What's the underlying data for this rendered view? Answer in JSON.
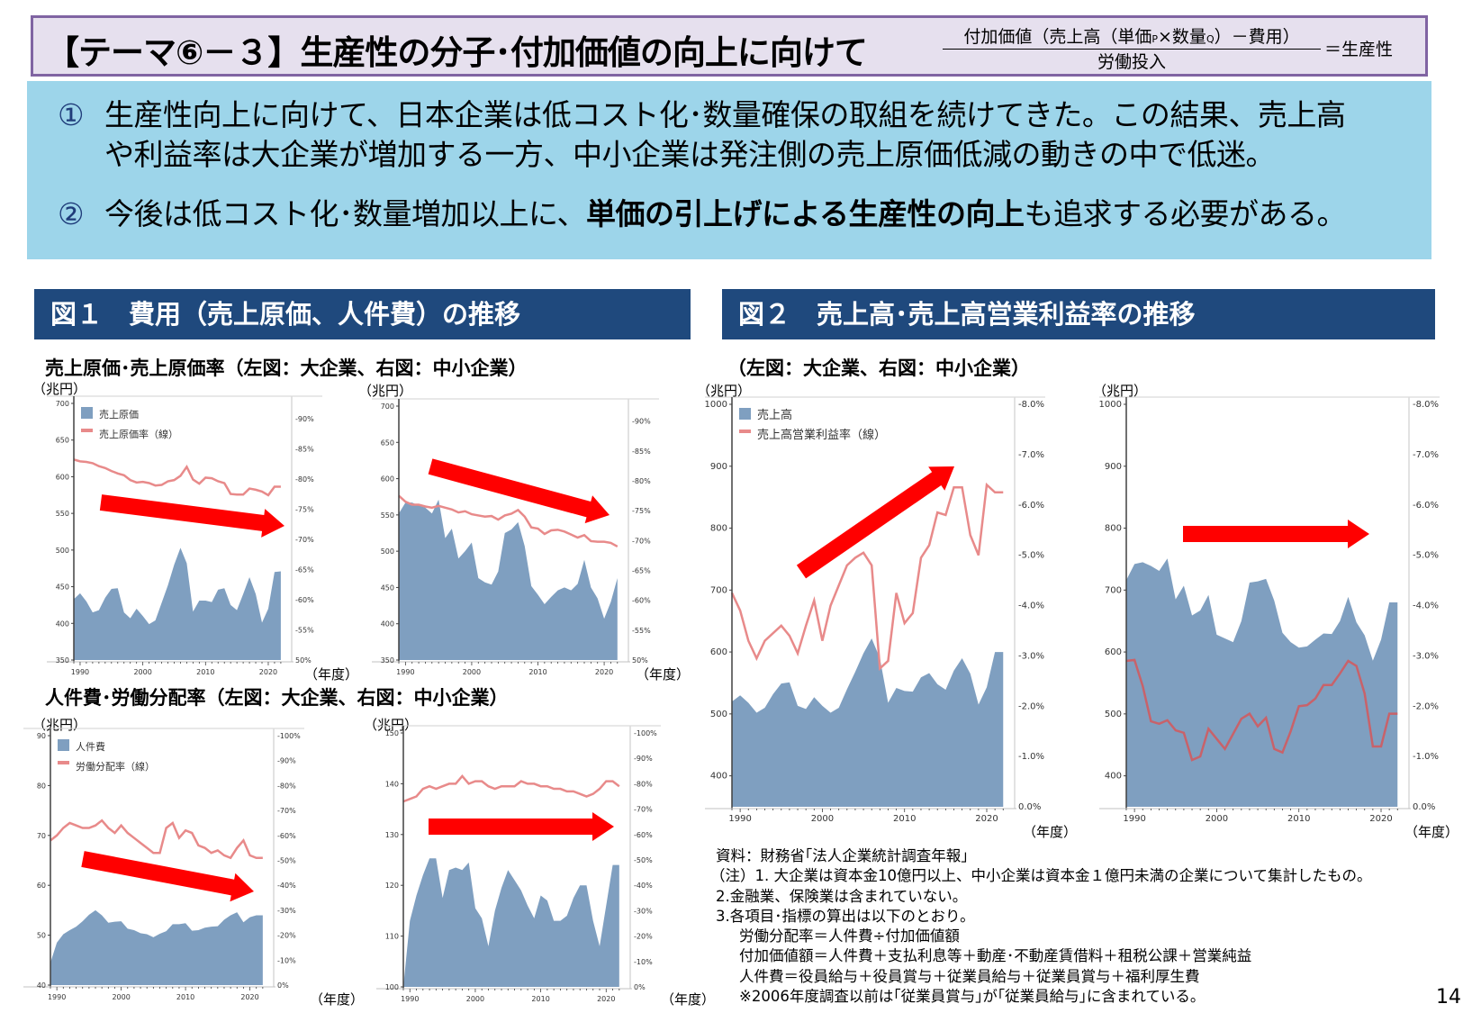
{
  "header": {
    "title": "【テーマ⑥－３】生産性の分子･付加価値の向上に向けて",
    "formula_numerator_a": "付加価値（売上高（単価",
    "formula_p": "P",
    "formula_x": "×数量",
    "formula_q": "Q",
    "formula_numerator_b": "）－費用）",
    "formula_denominator": "労働投入",
    "formula_result": "＝生産性"
  },
  "summary": {
    "point1_mark": "①",
    "point1_line1": "生産性向上に向けて、日本企業は低コスト化･数量確保の取組を続けてきた。この結果、売上高",
    "point1_line2": "や利益率は大企業が増加する一方、中小企業は発注側の売上原価低減の動きの中で低迷。",
    "point2_mark": "②",
    "point2_pre": "今後は低コスト化･数量増加以上に、",
    "point2_bold": "単価の引上げによる生産性の向上",
    "point2_post": "も追求する必要がある。"
  },
  "figures": {
    "fig1_title": "図１　費用（売上原価、人件費）の推移",
    "fig1_sub1": "売上原価･売上原価率（左図：大企業、右図：中小企業）",
    "fig1_sub2": "人件費･労働分配率（左図：大企業、右図：中小企業）",
    "fig2_title": "図２　売上高･売上高営業利益率の推移",
    "fig2_sub": "（左図：大企業、右図：中小企業）",
    "unit_label": "（兆円）",
    "year_label": "（年度）"
  },
  "colors": {
    "area": "#7f9fc0",
    "line": "#e88a8a",
    "line_dark": "#c8626a",
    "arrow": "#ff0000",
    "header_bg": "#1f497d",
    "summary_bg": "#9dd5ea",
    "title_bg": "#e6e0ee",
    "title_border": "#8064a2"
  },
  "chart_data": [
    {
      "id": "cost_of_sales_large",
      "type": "area+line",
      "title": "売上原価･売上原価率（大企業）",
      "legend": [
        "売上原価",
        "売上原価率（線）"
      ],
      "x": [
        1989,
        1990,
        1991,
        1992,
        1993,
        1994,
        1995,
        1996,
        1997,
        1998,
        1999,
        2000,
        2001,
        2002,
        2003,
        2004,
        2005,
        2006,
        2007,
        2008,
        2009,
        2010,
        2011,
        2012,
        2013,
        2014,
        2015,
        2016,
        2017,
        2018,
        2019,
        2020,
        2021,
        2022
      ],
      "area_values": [
        433,
        441,
        430,
        415,
        418,
        435,
        447,
        448,
        415,
        407,
        420,
        410,
        399,
        404,
        428,
        452,
        480,
        503,
        482,
        416,
        431,
        431,
        429,
        446,
        448,
        425,
        418,
        440,
        463,
        440,
        401,
        420,
        470,
        471
      ],
      "line_values": [
        83.2,
        82.9,
        82.8,
        82.6,
        82.1,
        81.8,
        81.3,
        80.9,
        80.6,
        79.8,
        79.4,
        79.5,
        79.3,
        78.9,
        79.0,
        79.6,
        79.8,
        80.5,
        82.0,
        79.9,
        79.2,
        80.2,
        80.1,
        79.6,
        79.3,
        77.5,
        77.4,
        77.4,
        78.4,
        78.2,
        77.9,
        77.3,
        78.7,
        78.7
      ],
      "ylim": [
        350,
        700
      ],
      "y_ticks": [
        350,
        400,
        450,
        500,
        550,
        600,
        650,
        700
      ],
      "y2lim": [
        50,
        92.5
      ],
      "y2_ticks": [
        "50%",
        "55%",
        "60%",
        "65%",
        "70%",
        "75%",
        "80%",
        "85%",
        "90%"
      ],
      "x_ticks": [
        1990,
        2000,
        2010,
        2020
      ],
      "ylabel": "（兆円）",
      "xlabel": "（年度）",
      "trend_arrow": "down"
    },
    {
      "id": "cost_of_sales_sme",
      "type": "area+line",
      "title": "売上原価･売上原価率（中小企業）",
      "x": [
        1989,
        1990,
        1991,
        1992,
        1993,
        1994,
        1995,
        1996,
        1997,
        1998,
        1999,
        2000,
        2001,
        2002,
        2003,
        2004,
        2005,
        2006,
        2007,
        2008,
        2009,
        2010,
        2011,
        2012,
        2013,
        2014,
        2015,
        2016,
        2017,
        2018,
        2019,
        2020,
        2021,
        2022
      ],
      "area_values": [
        552,
        567,
        567,
        563,
        560,
        552,
        571,
        518,
        531,
        490,
        500,
        512,
        463,
        457,
        454,
        472,
        525,
        530,
        540,
        507,
        452,
        440,
        427,
        437,
        446,
        450,
        446,
        455,
        488,
        450,
        435,
        407,
        430,
        463
      ],
      "line_values": [
        77.5,
        76.5,
        76.0,
        76.0,
        75.7,
        75.5,
        75.8,
        75.5,
        75.2,
        74.7,
        74.9,
        74.4,
        74.2,
        74.0,
        74.1,
        73.5,
        74.2,
        74.5,
        75.1,
        74.0,
        72.2,
        72.0,
        71.1,
        71.7,
        71.8,
        71.5,
        71.0,
        70.5,
        70.9,
        69.9,
        69.8,
        69.8,
        69.6,
        69.0
      ],
      "ylim": [
        350,
        700
      ],
      "y_ticks": [
        350,
        400,
        450,
        500,
        550,
        600,
        650,
        700
      ],
      "y2lim": [
        50,
        92.5
      ],
      "y2_ticks": [
        "50%",
        "55%",
        "60%",
        "65%",
        "70%",
        "75%",
        "80%",
        "85%",
        "90%"
      ],
      "x_ticks": [
        1990,
        2000,
        2010,
        2020
      ],
      "ylabel": "（兆円）",
      "xlabel": "（年度）",
      "trend_arrow": "down"
    },
    {
      "id": "labor_cost_large",
      "type": "area+line",
      "title": "人件費･労働分配率（大企業）",
      "legend": [
        "人件費",
        "労働分配率（線）"
      ],
      "x": [
        1989,
        1990,
        1991,
        1992,
        1993,
        1994,
        1995,
        1996,
        1997,
        1998,
        1999,
        2000,
        2001,
        2002,
        2003,
        2004,
        2005,
        2006,
        2007,
        2008,
        2009,
        2010,
        2011,
        2012,
        2013,
        2014,
        2015,
        2016,
        2017,
        2018,
        2019,
        2020,
        2021,
        2022
      ],
      "area_values": [
        44.5,
        48.5,
        50.2,
        51.0,
        51.7,
        52.8,
        54.1,
        55.0,
        54.0,
        52.5,
        52.7,
        52.8,
        51.3,
        51.0,
        50.4,
        50.2,
        49.6,
        50.3,
        50.8,
        52.2,
        52.2,
        52.4,
        50.9,
        51.0,
        51.5,
        51.7,
        51.8,
        53.1,
        54.0,
        54.6,
        52.6,
        53.6,
        54.0,
        54.0
      ],
      "line_values": [
        58,
        60,
        63,
        65,
        64,
        63,
        63,
        64,
        66,
        63,
        61,
        64,
        61,
        59,
        57,
        55,
        53,
        53,
        63,
        65,
        59,
        62,
        61,
        56,
        55,
        53,
        54,
        52,
        51,
        55,
        58,
        52,
        51,
        51
      ],
      "ylim": [
        40,
        90
      ],
      "y_ticks": [
        40,
        50,
        60,
        70,
        80,
        90
      ],
      "y2lim": [
        0,
        100
      ],
      "y2_ticks": [
        "0%",
        "10%",
        "20%",
        "30%",
        "40%",
        "50%",
        "60%",
        "70%",
        "80%",
        "90%",
        "100%"
      ],
      "x_ticks": [
        1990,
        2000,
        2010,
        2020
      ],
      "ylabel": "（兆円）",
      "xlabel": "（年度）",
      "trend_arrow": "down"
    },
    {
      "id": "labor_cost_sme",
      "type": "area+line",
      "title": "人件費･労働分配率（中小企業）",
      "x": [
        1989,
        1990,
        1991,
        1992,
        1993,
        1994,
        1995,
        1996,
        1997,
        1998,
        1999,
        2000,
        2001,
        2002,
        2003,
        2004,
        2005,
        2006,
        2007,
        2008,
        2009,
        2010,
        2011,
        2012,
        2013,
        2014,
        2015,
        2016,
        2017,
        2018,
        2019,
        2020,
        2021,
        2022
      ],
      "area_values": [
        100,
        113,
        118,
        122,
        125.3,
        125.3,
        117.5,
        123,
        123.5,
        123,
        124.5,
        115.5,
        113.5,
        108,
        115,
        119.5,
        123,
        121,
        119,
        116,
        113.5,
        118,
        117,
        113,
        113,
        114,
        117.5,
        120,
        120,
        113,
        108,
        116,
        124,
        124
      ],
      "line_values": [
        73,
        74,
        75,
        78,
        79,
        78,
        79,
        80,
        80,
        83,
        80,
        81,
        81,
        79,
        78,
        79,
        79,
        79,
        81,
        80,
        80,
        79,
        79,
        78,
        78,
        77,
        77,
        76,
        75,
        76,
        78,
        81,
        81,
        79
      ],
      "ylim": [
        100,
        150
      ],
      "y_ticks": [
        100,
        110,
        120,
        130,
        140,
        150
      ],
      "y2lim": [
        0,
        100
      ],
      "y2_ticks": [
        "0%",
        "10%",
        "20%",
        "30%",
        "40%",
        "50%",
        "60%",
        "70%",
        "80%",
        "90%",
        "100%"
      ],
      "x_ticks": [
        1990,
        2000,
        2010,
        2020
      ],
      "ylabel": "（兆円）",
      "xlabel": "（年度）",
      "trend_arrow": "flat"
    },
    {
      "id": "sales_large",
      "type": "area+line",
      "title": "売上高･売上高営業利益率（大企業）",
      "legend": [
        "売上高",
        "売上高営業利益率（線）"
      ],
      "x": [
        1989,
        1990,
        1991,
        1992,
        1993,
        1994,
        1995,
        1996,
        1997,
        1998,
        1999,
        2000,
        2001,
        2002,
        2003,
        2004,
        2005,
        2006,
        2007,
        2008,
        2009,
        2010,
        2011,
        2012,
        2013,
        2014,
        2015,
        2016,
        2017,
        2018,
        2019,
        2020,
        2021,
        2022
      ],
      "area_values": [
        520,
        530,
        518,
        502,
        510,
        532,
        549,
        551,
        513,
        508,
        527,
        513,
        502,
        510,
        540,
        568,
        598,
        622,
        590,
        518,
        542,
        537,
        536,
        559,
        566,
        548,
        539,
        570,
        590,
        565,
        515,
        543,
        600,
        600
      ],
      "line_values": [
        4.25,
        3.9,
        3.3,
        2.95,
        3.3,
        3.45,
        3.6,
        3.4,
        3.05,
        3.6,
        4.1,
        3.3,
        4.0,
        4.4,
        4.8,
        4.95,
        5.05,
        4.8,
        2.75,
        2.9,
        4.25,
        3.65,
        3.85,
        4.95,
        5.2,
        5.85,
        5.8,
        6.35,
        6.35,
        5.4,
        5.0,
        6.4,
        6.25,
        6.25
      ],
      "ylim": [
        350,
        1000
      ],
      "y_ticks": [
        400,
        500,
        600,
        700,
        800,
        900,
        1000
      ],
      "y2lim": [
        0,
        8
      ],
      "y2_ticks": [
        "0.0%",
        "1.0%",
        "2.0%",
        "3.0%",
        "4.0%",
        "5.0%",
        "6.0%",
        "7.0%",
        "8.0%"
      ],
      "x_ticks": [
        1990,
        2000,
        2010,
        2020
      ],
      "ylabel": "（兆円）",
      "xlabel": "（年度）",
      "trend_arrow": "up"
    },
    {
      "id": "sales_sme",
      "type": "area+line",
      "title": "売上高･売上高営業利益率（中小企業）",
      "x": [
        1989,
        1990,
        1991,
        1992,
        1993,
        1994,
        1995,
        1996,
        1997,
        1998,
        1999,
        2000,
        2001,
        2002,
        2003,
        2004,
        2005,
        2006,
        2007,
        2008,
        2009,
        2010,
        2011,
        2012,
        2013,
        2014,
        2015,
        2016,
        2017,
        2018,
        2019,
        2020,
        2021,
        2022
      ],
      "area_values": [
        716,
        742,
        745,
        739,
        731,
        751,
        685,
        707,
        659,
        667,
        692,
        628,
        622,
        616,
        650,
        712,
        714,
        718,
        683,
        631,
        616,
        607,
        609,
        620,
        630,
        629,
        650,
        689,
        648,
        627,
        586,
        620,
        680,
        680
      ],
      "line_values": [
        2.9,
        2.92,
        2.4,
        1.7,
        1.65,
        1.72,
        1.52,
        1.47,
        0.93,
        1.0,
        1.55,
        1.35,
        1.15,
        1.45,
        1.75,
        1.85,
        1.6,
        1.77,
        1.15,
        1.08,
        1.5,
        2.0,
        2.02,
        2.15,
        2.42,
        2.42,
        2.65,
        2.9,
        2.8,
        2.25,
        1.2,
        1.2,
        1.85,
        1.85
      ],
      "ylim": [
        350,
        1000
      ],
      "y_ticks": [
        400,
        500,
        600,
        700,
        800,
        900,
        1000
      ],
      "y2lim": [
        0,
        8
      ],
      "y2_ticks": [
        "0.0%",
        "1.0%",
        "2.0%",
        "3.0%",
        "4.0%",
        "5.0%",
        "6.0%",
        "7.0%",
        "8.0%"
      ],
      "x_ticks": [
        1990,
        2000,
        2010,
        2020
      ],
      "ylabel": "（兆円）",
      "xlabel": "（年度）",
      "trend_arrow": "flat"
    }
  ],
  "notes": {
    "source": "資料：財務省｢法人企業統計調査年報｣",
    "note1": "（注）1. 大企業は資本金10億円以上、中小企業は資本金１億円未満の企業について集計したもの。",
    "note2": "2.金融業、保険業は含まれていない。",
    "note3": "3.各項目･指標の算出は以下のとおり。",
    "def1": "労働分配率＝人件費÷付加価値額",
    "def2": "付加価値額＝人件費＋支払利息等＋動産･不動産賃借料＋租税公課＋営業純益",
    "def3": "人件費＝役員給与＋役員賞与＋従業員給与＋従業員賞与＋福利厚生費",
    "def4": "※2006年度調査以前は｢従業員賞与｣が｢従業員給与｣に含まれている。"
  },
  "page_number": "14"
}
